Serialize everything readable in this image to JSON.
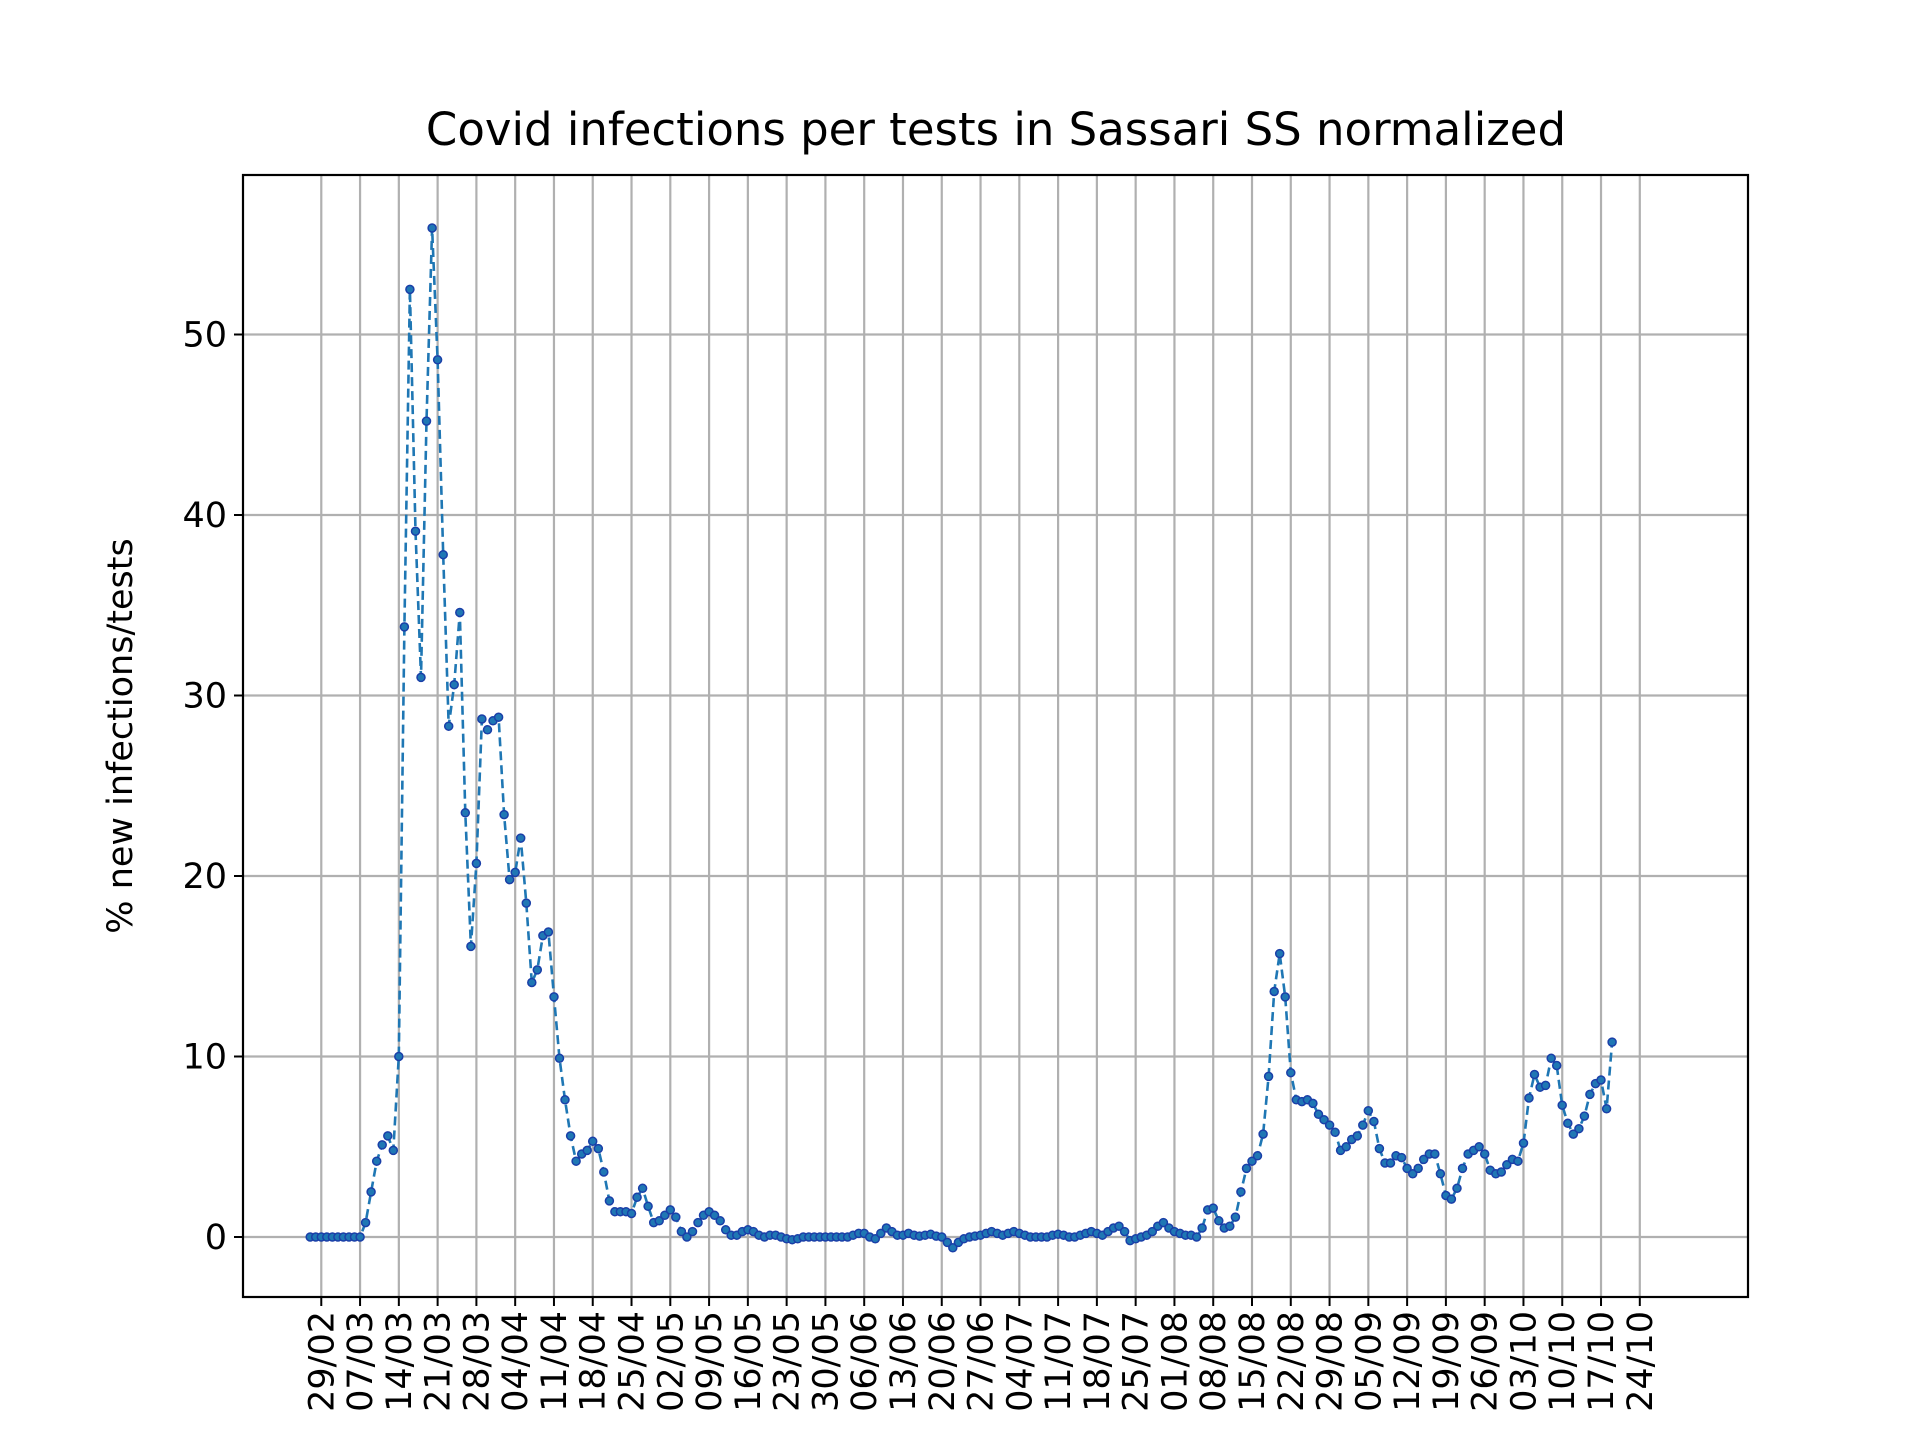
{
  "chart_data": {
    "type": "line",
    "title": "Covid infections per tests in Sassari SS normalized",
    "xlabel": "",
    "ylabel": "% new infections/tests",
    "ylim": [
      -3.5,
      58.8
    ],
    "yticks": [
      0,
      10,
      20,
      30,
      40,
      50
    ],
    "grid": true,
    "legend": "none",
    "x_start_date": "27/02",
    "x_ticks": [
      {
        "label": "29/02",
        "day": 2
      },
      {
        "label": "07/03",
        "day": 9
      },
      {
        "label": "14/03",
        "day": 16
      },
      {
        "label": "21/03",
        "day": 23
      },
      {
        "label": "28/03",
        "day": 30
      },
      {
        "label": "04/04",
        "day": 37
      },
      {
        "label": "11/04",
        "day": 44
      },
      {
        "label": "18/04",
        "day": 51
      },
      {
        "label": "25/04",
        "day": 58
      },
      {
        "label": "02/05",
        "day": 65
      },
      {
        "label": "09/05",
        "day": 72
      },
      {
        "label": "16/05",
        "day": 79
      },
      {
        "label": "23/05",
        "day": 86
      },
      {
        "label": "30/05",
        "day": 93
      },
      {
        "label": "06/06",
        "day": 100
      },
      {
        "label": "13/06",
        "day": 107
      },
      {
        "label": "20/06",
        "day": 114
      },
      {
        "label": "27/06",
        "day": 121
      },
      {
        "label": "04/07",
        "day": 128
      },
      {
        "label": "11/07",
        "day": 135
      },
      {
        "label": "18/07",
        "day": 142
      },
      {
        "label": "25/07",
        "day": 149
      },
      {
        "label": "01/08",
        "day": 156
      },
      {
        "label": "08/08",
        "day": 163
      },
      {
        "label": "15/08",
        "day": 170
      },
      {
        "label": "22/08",
        "day": 177
      },
      {
        "label": "29/08",
        "day": 184
      },
      {
        "label": "05/09",
        "day": 191
      },
      {
        "label": "12/09",
        "day": 198
      },
      {
        "label": "19/09",
        "day": 205
      },
      {
        "label": "26/09",
        "day": 212
      },
      {
        "label": "03/10",
        "day": 219
      },
      {
        "label": "10/10",
        "day": 226
      },
      {
        "label": "17/10",
        "day": 233
      },
      {
        "label": "24/10",
        "day": 240
      }
    ],
    "series": [
      {
        "name": "",
        "color": "#1f77b4",
        "marker_color": "#1a3fa8",
        "values": [
          0,
          0,
          0,
          0,
          0,
          0,
          0,
          0,
          0,
          0,
          0.8,
          2.5,
          4.2,
          5.1,
          5.6,
          4.8,
          10,
          33.8,
          52.5,
          39.1,
          31,
          45.2,
          55.9,
          48.6,
          37.8,
          28.3,
          30.6,
          34.6,
          23.5,
          16.1,
          20.7,
          28.7,
          28.1,
          28.6,
          28.8,
          23.4,
          19.8,
          20.2,
          22.1,
          18.5,
          14.1,
          14.8,
          16.7,
          16.9,
          13.3,
          9.9,
          7.6,
          5.6,
          4.2,
          4.6,
          4.8,
          5.3,
          4.9,
          3.6,
          2.0,
          1.4,
          1.4,
          1.4,
          1.3,
          2.2,
          2.7,
          1.7,
          0.8,
          0.9,
          1.2,
          1.5,
          1.1,
          0.3,
          0,
          0.3,
          0.8,
          1.2,
          1.4,
          1.2,
          0.9,
          0.4,
          0.1,
          0.1,
          0.3,
          0.4,
          0.3,
          0.1,
          0,
          0.1,
          0.1,
          0,
          -0.1,
          -0.15,
          -0.1,
          0,
          0,
          0,
          0,
          0,
          0,
          0,
          0,
          0,
          0.1,
          0.2,
          0.2,
          0,
          -0.1,
          0.2,
          0.5,
          0.3,
          0.1,
          0.1,
          0.2,
          0.1,
          0.05,
          0.1,
          0.15,
          0.05,
          0,
          -0.3,
          -0.6,
          -0.3,
          -0.1,
          0,
          0.05,
          0.1,
          0.2,
          0.3,
          0.2,
          0.1,
          0.2,
          0.3,
          0.2,
          0.1,
          0,
          0,
          0,
          0,
          0.1,
          0.15,
          0.1,
          0,
          0,
          0.1,
          0.2,
          0.3,
          0.2,
          0.1,
          0.3,
          0.5,
          0.6,
          0.3,
          -0.2,
          -0.1,
          0,
          0.1,
          0.3,
          0.6,
          0.8,
          0.5,
          0.3,
          0.2,
          0.1,
          0.1,
          0,
          0.5,
          1.5,
          1.6,
          0.9,
          0.5,
          0.6,
          1.1,
          2.5,
          3.8,
          4.2,
          4.5,
          5.7,
          8.9,
          13.6,
          15.7,
          13.3,
          9.1,
          7.6,
          7.5,
          7.6,
          7.4,
          6.8,
          6.5,
          6.2,
          5.8,
          4.8,
          5,
          5.4,
          5.6,
          6.2,
          7,
          6.4,
          4.9,
          4.1,
          4.1,
          4.5,
          4.4,
          3.8,
          3.5,
          3.8,
          4.3,
          4.6,
          4.6,
          3.5,
          2.3,
          2.1,
          2.7,
          3.8,
          4.6,
          4.8,
          5,
          4.6,
          3.7,
          3.5,
          3.6,
          4,
          4.3,
          4.2,
          5.2,
          7.7,
          9,
          8.3,
          8.4,
          9.9,
          9.5,
          7.3,
          6.3,
          5.7,
          6,
          6.7,
          7.9,
          8.5,
          8.7,
          7.1,
          10.8
        ]
      }
    ]
  }
}
